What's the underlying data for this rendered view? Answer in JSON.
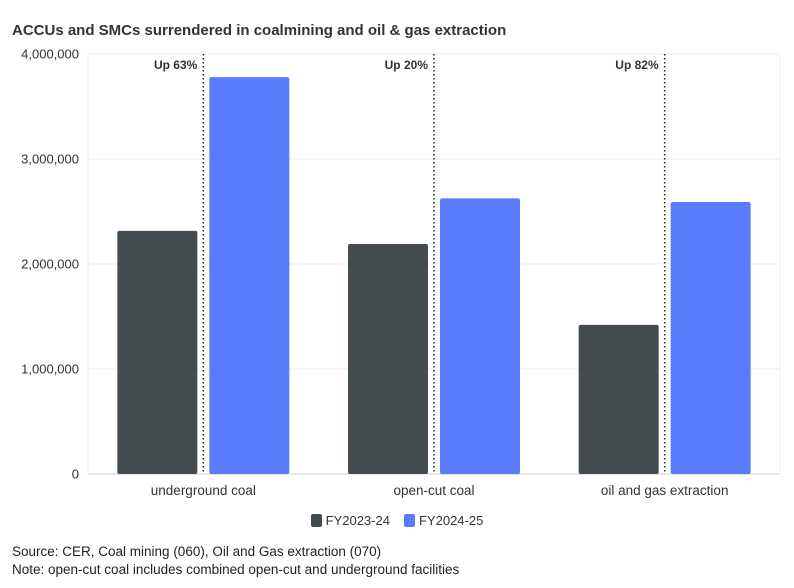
{
  "chart_data": {
    "type": "bar",
    "title": "ACCUs and SMCs surrendered in coalmining and oil & gas extraction",
    "categories": [
      "underground coal",
      "open-cut coal",
      "oil and gas extraction"
    ],
    "series": [
      {
        "name": "FY2023-24",
        "color": "#454c50",
        "values": [
          2315000,
          2190000,
          1420000
        ]
      },
      {
        "name": "FY2024-25",
        "color": "#5b7bff",
        "values": [
          3780000,
          2625000,
          2590000
        ]
      }
    ],
    "ylim": [
      0,
      4000000
    ],
    "yticks": [
      0,
      1000000,
      2000000,
      3000000,
      4000000
    ],
    "ytick_labels": [
      "0",
      "1,000,000",
      "2,000,000",
      "3,000,000",
      "4,000,000"
    ],
    "annotations": [
      "Up 63%",
      "Up 20%",
      "Up 82%"
    ],
    "grid": true,
    "legend_position": "bottom-center"
  },
  "notes": {
    "source": "Source: CER, Coal mining (060), Oil and Gas extraction (070)",
    "note": "Note: open-cut coal includes combined open-cut and underground facilities"
  }
}
